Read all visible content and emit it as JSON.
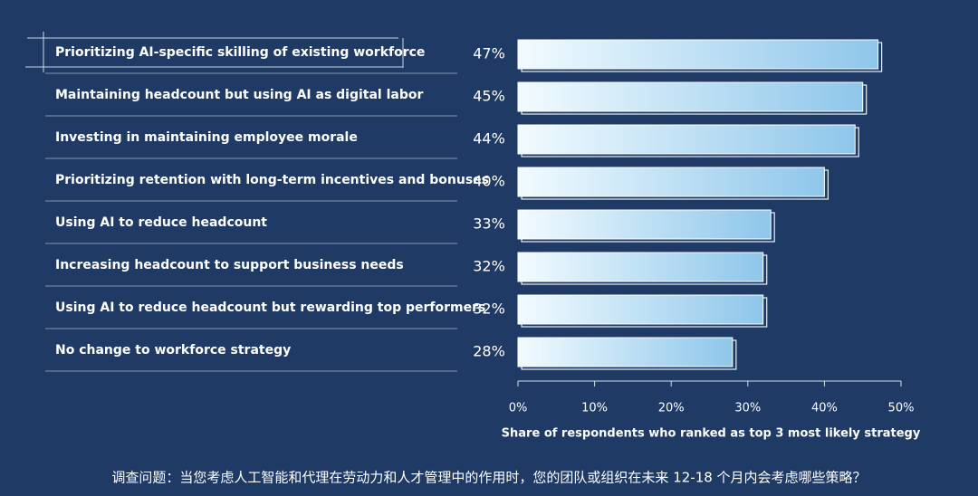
{
  "chart_data": {
    "type": "barh",
    "categories": [
      "Prioritizing AI-specific skilling of existing workforce",
      "Maintaining headcount but using AI as digital labor",
      "Investing in maintaining employee morale",
      "Prioritizing retention with long-term incentives and bonuses",
      "Using AI to reduce headcount",
      "Increasing headcount to support business needs",
      "Using AI to reduce headcount but rewarding top performers",
      "No change to workforce strategy"
    ],
    "values": [
      47,
      45,
      44,
      40,
      33,
      32,
      32,
      28
    ],
    "value_labels": [
      "47%",
      "45%",
      "44%",
      "40%",
      "33%",
      "32%",
      "32%",
      "28%"
    ],
    "color": "#8ec6ea",
    "xlim": [
      0,
      50
    ],
    "xticks": [
      {
        "value": 0,
        "label": "0%"
      },
      {
        "value": 10,
        "label": "10%"
      },
      {
        "value": 20,
        "label": "20%"
      },
      {
        "value": 30,
        "label": "30%"
      },
      {
        "value": 40,
        "label": "40%"
      },
      {
        "value": 50,
        "label": "50%"
      }
    ],
    "xlabel": "Share of respondents who ranked as top 3 most likely strategy",
    "caption": "调查问题：当您考虑人工智能和代理在劳动力和人才管理中的作用时，您的团队或组织在未来 12-18 个月内会考虑哪些策略？"
  }
}
